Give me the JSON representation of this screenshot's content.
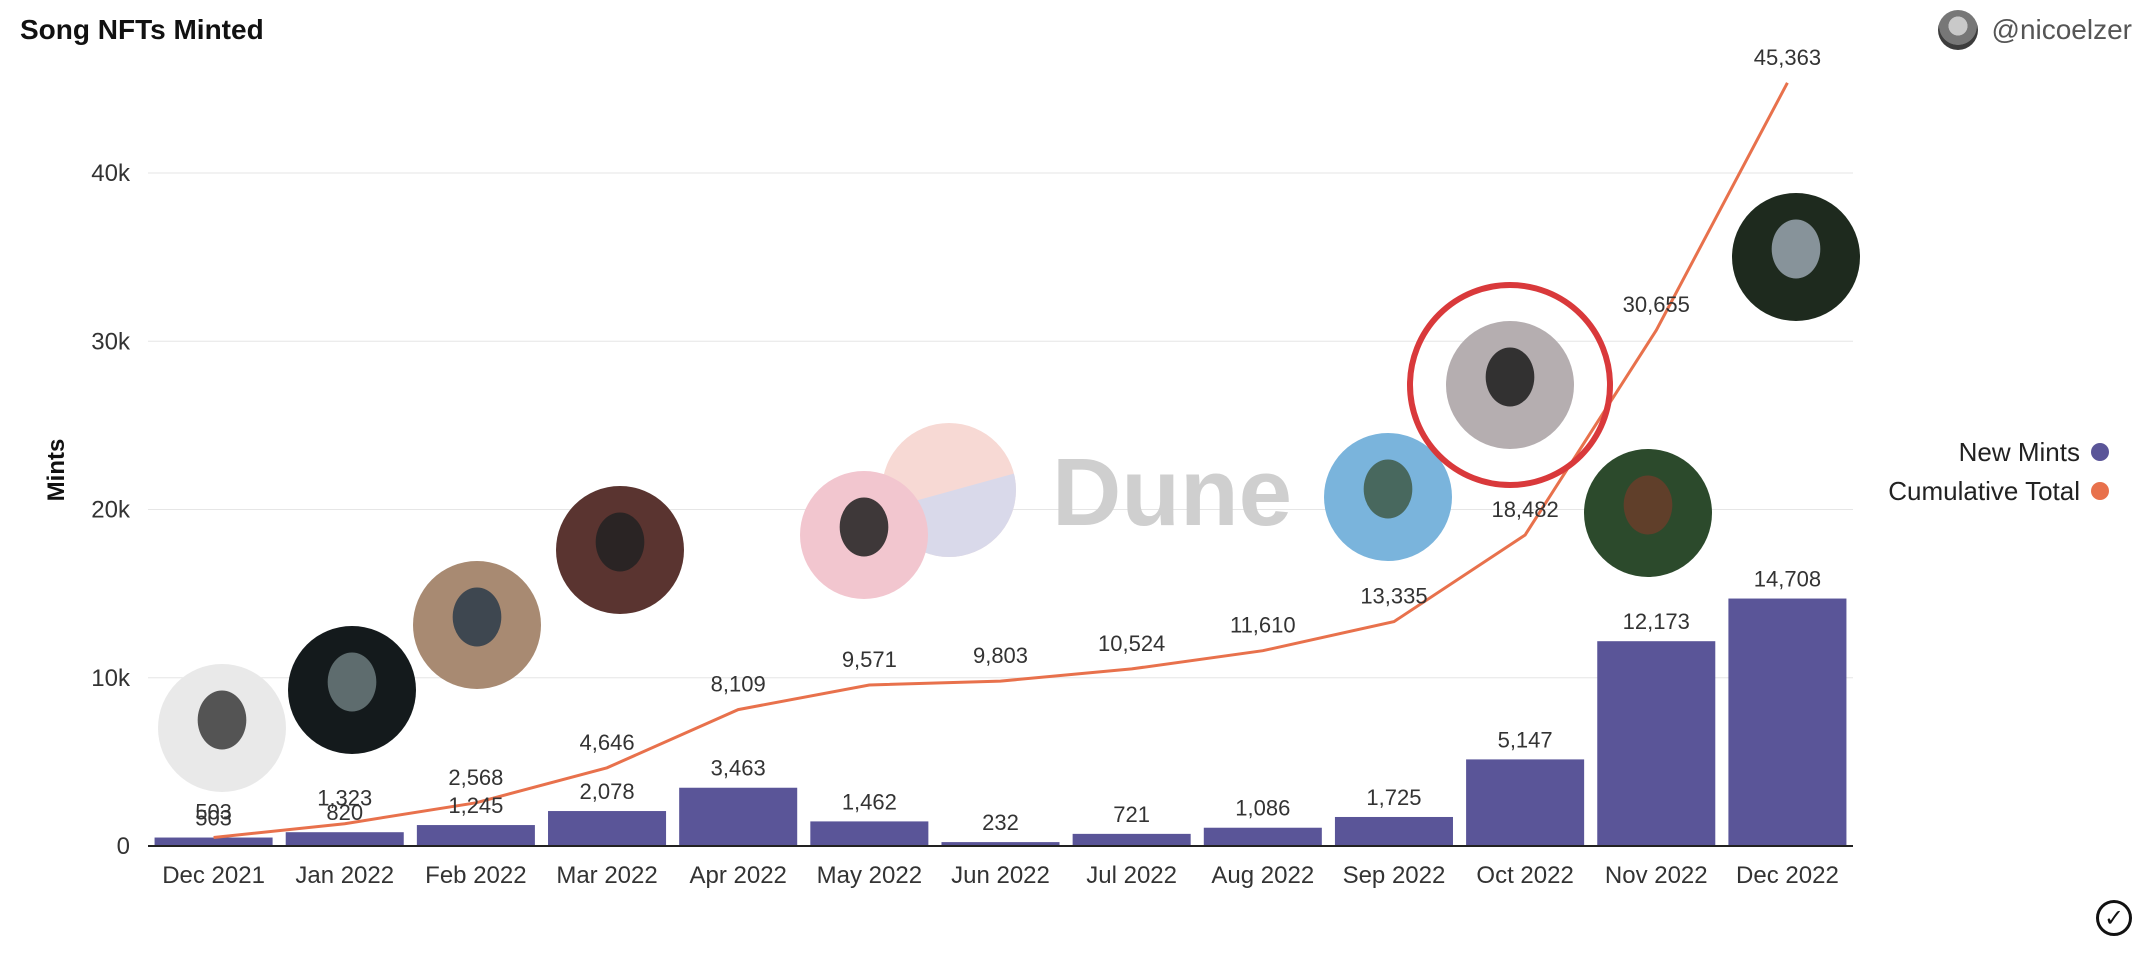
{
  "header": {
    "title": "Song NFTs Minted",
    "user_handle": "@nicoelzer"
  },
  "colors": {
    "bars": "#5a5598",
    "line": "#e8714c",
    "highlight": "#d9393b"
  },
  "watermark": "Dune",
  "icons": {
    "avatar": "user-avatar",
    "status": "checkmark-circle-icon",
    "artists": "artist-portrait"
  },
  "chart_data": {
    "type": "bar",
    "title": "Song NFTs Minted",
    "ylabel": "Mints",
    "xlabel": "",
    "ylim": [
      0,
      48500
    ],
    "yticks": [
      0,
      10000,
      20000,
      30000,
      40000
    ],
    "ytick_labels": [
      "0",
      "10k",
      "20k",
      "30k",
      "40k"
    ],
    "grid": true,
    "legend_position": "right",
    "categories": [
      "Dec 2021",
      "Jan 2022",
      "Feb 2022",
      "Mar 2022",
      "Apr 2022",
      "May 2022",
      "Jun 2022",
      "Jul 2022",
      "Aug 2022",
      "Sep 2022",
      "Oct 2022",
      "Nov 2022",
      "Dec 2022"
    ],
    "series": [
      {
        "name": "New Mints",
        "type": "bar",
        "values": [
          503,
          820,
          1245,
          2078,
          3463,
          1462,
          232,
          721,
          1086,
          1725,
          5147,
          12173,
          14708
        ],
        "labels": [
          "503",
          "820",
          "1,245",
          "2,078",
          "3,463",
          "1,462",
          "232",
          "721",
          "1,086",
          "1,725",
          "5,147",
          "12,173",
          "14,708"
        ]
      },
      {
        "name": "Cumulative Total",
        "type": "line",
        "values": [
          503,
          1323,
          2568,
          4646,
          8109,
          9571,
          9803,
          10524,
          11610,
          13335,
          18482,
          30655,
          45363
        ],
        "labels": [
          "503",
          "1,323",
          "2,568",
          "4,646",
          "8,109",
          "9,571",
          "9,803",
          "10,524",
          "11,610",
          "13,335",
          "18,482",
          "30,655",
          "45,363"
        ]
      }
    ]
  }
}
